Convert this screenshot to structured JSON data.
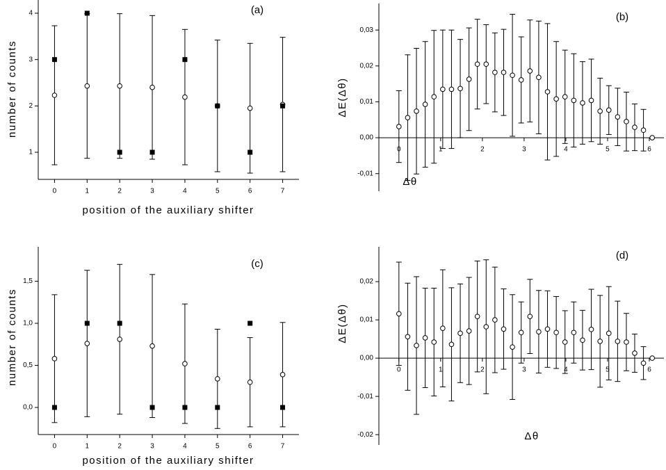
{
  "chart_data": [
    {
      "type": "errorbar",
      "panel_label": "(a)",
      "xlabel": "position of the auxiliary shifter",
      "ylabel": "number of counts",
      "x": [
        0,
        1,
        2,
        3,
        4,
        5,
        6,
        7
      ],
      "series": [
        {
          "marker": "circle",
          "color": "#000000",
          "values": [
            2.23,
            2.43,
            2.43,
            2.4,
            2.19,
            2.0,
            1.95,
            2.03
          ],
          "errors": [
            1.5,
            1.56,
            1.56,
            1.55,
            1.46,
            1.42,
            1.4,
            1.45
          ]
        },
        {
          "marker": "square",
          "color": "#000000",
          "values": [
            3,
            4,
            1,
            1,
            3,
            2,
            1,
            2
          ]
        }
      ],
      "xlim": [
        -0.5,
        7.5
      ],
      "xticks": [
        0,
        1,
        2,
        3,
        4,
        5,
        6,
        7
      ],
      "ylim": [
        0.415,
        4.285
      ],
      "yticks": [
        1,
        2,
        3,
        4
      ]
    },
    {
      "type": "errorbar",
      "panel_label": "(b)",
      "xlabel": "Δθ",
      "ylabel": "ΔE(Δθ)",
      "x": [
        0,
        0.21,
        0.42,
        0.63,
        0.84,
        1.05,
        1.26,
        1.47,
        1.68,
        1.88,
        2.09,
        2.3,
        2.51,
        2.72,
        2.93,
        3.14,
        3.35,
        3.56,
        3.77,
        3.98,
        4.19,
        4.4,
        4.61,
        4.82,
        5.03,
        5.24,
        5.45,
        5.65,
        5.86,
        6.07
      ],
      "series": [
        {
          "marker": "circle",
          "color": "#000000",
          "values": [
            0.0031,
            0.0056,
            0.0074,
            0.0093,
            0.0114,
            0.0135,
            0.0135,
            0.0137,
            0.0163,
            0.0205,
            0.0205,
            0.0182,
            0.0182,
            0.0174,
            0.0161,
            0.0186,
            0.0168,
            0.0128,
            0.0108,
            0.0114,
            0.0104,
            0.0097,
            0.0104,
            0.0074,
            0.0077,
            0.0058,
            0.0045,
            0.0029,
            0.0021,
            0
          ],
          "errors": [
            0.01,
            0.0175,
            0.0175,
            0.0175,
            0.0185,
            0.0165,
            0.0165,
            0.0137,
            0.0143,
            0.0125,
            0.011,
            0.011,
            0.012,
            0.017,
            0.012,
            0.0142,
            0.0157,
            0.019,
            0.016,
            0.013,
            0.013,
            0.0115,
            0.0115,
            0.0092,
            0.0068,
            0.008,
            0.0082,
            0.0065,
            0.0058,
            0
          ]
        }
      ],
      "xlim": [
        -0.48,
        6.35
      ],
      "xticks": [
        0,
        1,
        2,
        3,
        4,
        5,
        6
      ],
      "ylim": [
        -0.0149,
        0.0374
      ],
      "yticks": [
        {
          "value": -0.01,
          "label": "-0,01"
        },
        {
          "value": 0,
          "label": "0,00"
        },
        {
          "value": 0.01,
          "label": "0,01"
        },
        {
          "value": 0.02,
          "label": "0,02"
        },
        {
          "value": 0.03,
          "label": "0,03"
        }
      ]
    },
    {
      "type": "errorbar",
      "panel_label": "(c)",
      "xlabel": "position of the auxiliary shifter",
      "ylabel": "number of counts",
      "x": [
        0,
        1,
        2,
        3,
        4,
        5,
        6,
        7
      ],
      "series": [
        {
          "marker": "circle",
          "color": "#000000",
          "values": [
            0.58,
            0.76,
            0.81,
            0.73,
            0.52,
            0.34,
            0.3,
            0.39
          ],
          "errors": [
            0.76,
            0.87,
            0.89,
            0.85,
            0.71,
            0.59,
            0.53,
            0.62
          ]
        },
        {
          "marker": "square",
          "color": "#000000",
          "values": [
            0,
            1,
            1,
            0,
            0,
            0,
            1,
            0
          ]
        }
      ],
      "xlim": [
        -0.5,
        7.5
      ],
      "xticks": [
        0,
        1,
        2,
        3,
        4,
        5,
        6,
        7
      ],
      "ylim": [
        -0.322,
        1.909
      ],
      "yticks": [
        {
          "value": 0,
          "label": "0,0"
        },
        {
          "value": 0.5,
          "label": "0,5"
        },
        {
          "value": 1,
          "label": "1,0"
        },
        {
          "value": 1.5,
          "label": "1,5"
        }
      ]
    },
    {
      "type": "errorbar",
      "panel_label": "(d)",
      "xlabel": "Δθ",
      "ylabel": "ΔE(Δθ)",
      "x": [
        0,
        0.21,
        0.42,
        0.63,
        0.84,
        1.05,
        1.26,
        1.47,
        1.68,
        1.88,
        2.09,
        2.3,
        2.51,
        2.72,
        2.93,
        3.14,
        3.35,
        3.56,
        3.77,
        3.98,
        4.19,
        4.4,
        4.61,
        4.82,
        5.03,
        5.24,
        5.45,
        5.65,
        5.86,
        6.07
      ],
      "series": [
        {
          "marker": "circle",
          "color": "#000000",
          "values": [
            0.0116,
            0.0056,
            0.0033,
            0.0053,
            0.0042,
            0.0078,
            0.0036,
            0.0065,
            0.0071,
            0.0109,
            0.0082,
            0.01,
            0.0076,
            0.0029,
            0.0067,
            0.0109,
            0.0069,
            0.0076,
            0.0067,
            0.0042,
            0.0067,
            0.0047,
            0.0075,
            0.0044,
            0.0065,
            0.0044,
            0.0042,
            0.0013,
            -0.0013,
            0
          ],
          "errors": [
            0.0135,
            0.014,
            0.018,
            0.013,
            0.0141,
            0.0153,
            0.0148,
            0.0129,
            0.014,
            0.0145,
            0.0175,
            0.0138,
            0.0105,
            0.0137,
            0.008,
            0.0097,
            0.0108,
            0.01,
            0.0094,
            0.0082,
            0.008,
            0.0078,
            0.0105,
            0.012,
            0.0122,
            0.0105,
            0.0075,
            0.005,
            0.0043,
            0
          ]
        }
      ],
      "xlim": [
        -0.48,
        6.35
      ],
      "xticks": [
        0,
        1,
        2,
        3,
        4,
        5,
        6
      ],
      "ylim": [
        -0.0227,
        0.0291
      ],
      "yticks": [
        {
          "value": -0.02,
          "label": "-0,02"
        },
        {
          "value": -0.01,
          "label": "-0,01"
        },
        {
          "value": 0,
          "label": "0,00"
        },
        {
          "value": 0.01,
          "label": "0,01"
        },
        {
          "value": 0.02,
          "label": "0,02"
        }
      ]
    }
  ]
}
